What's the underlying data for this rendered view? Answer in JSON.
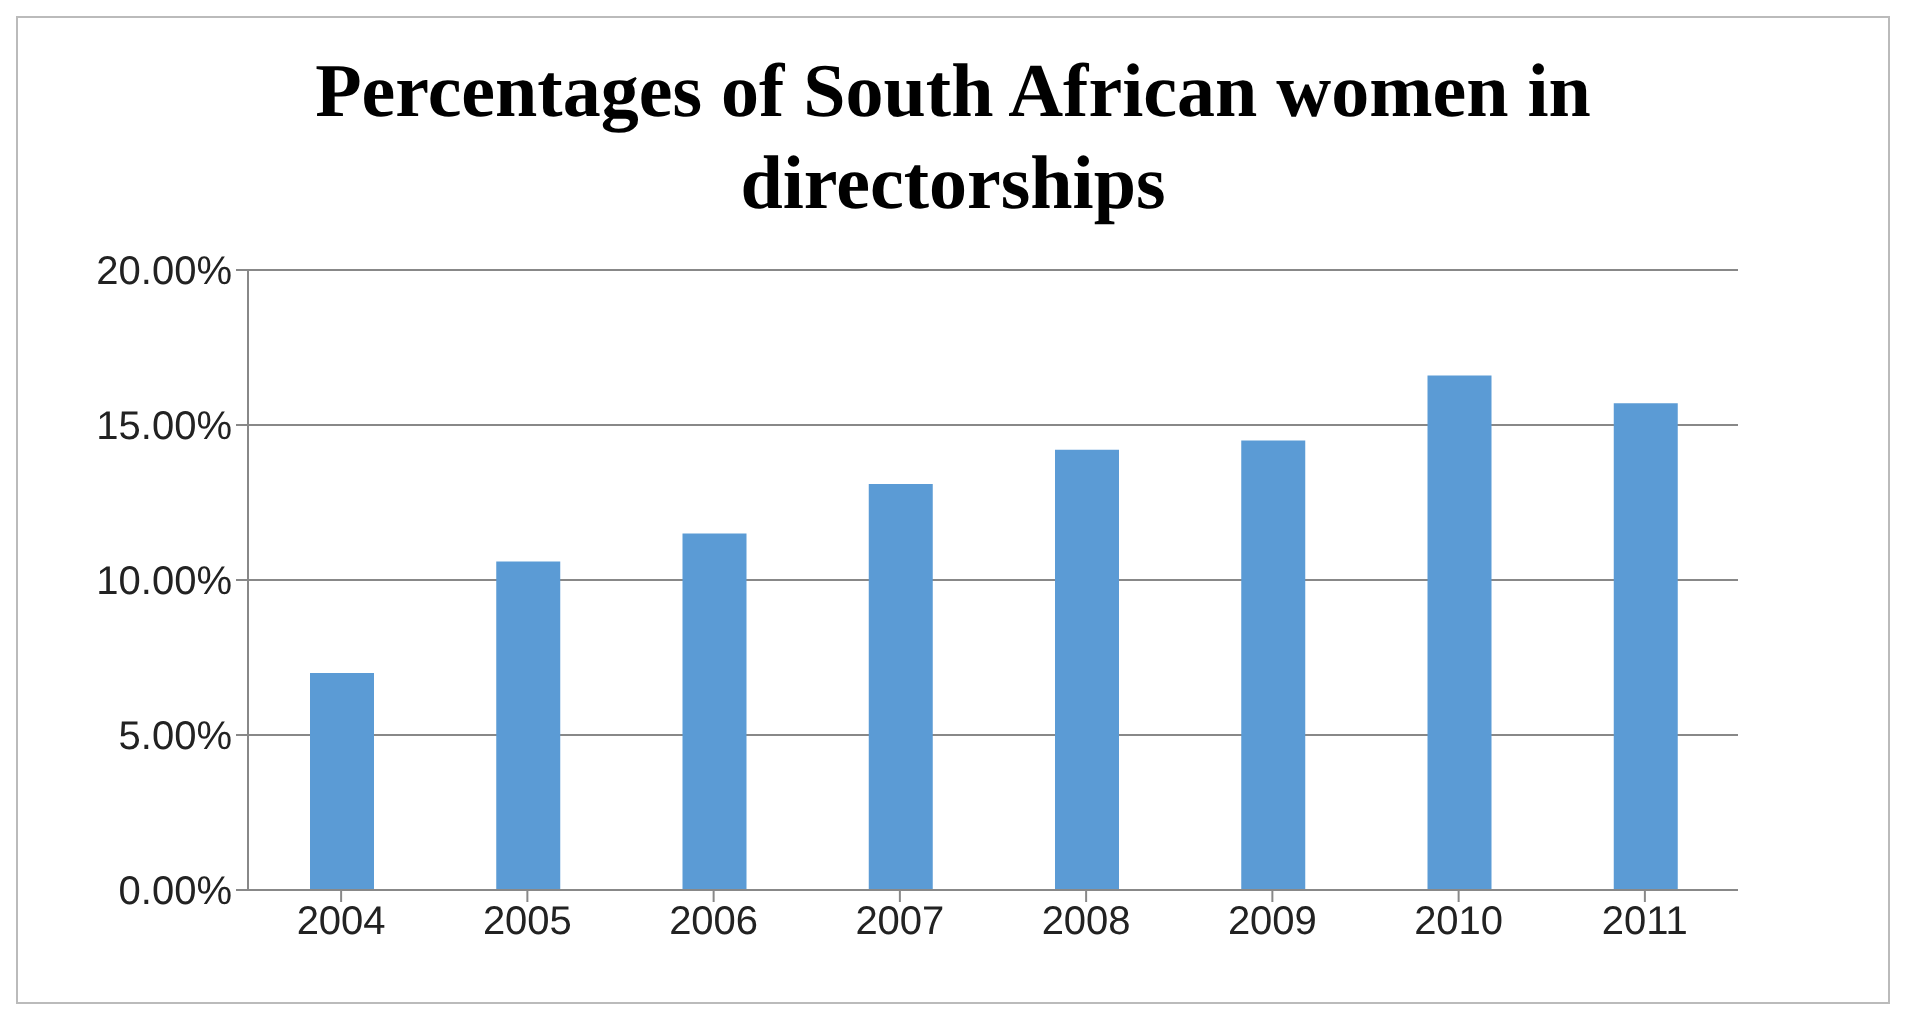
{
  "chart_data": {
    "type": "bar",
    "title": "Percentages of South African women in directorships",
    "categories": [
      "2004",
      "2005",
      "2006",
      "2007",
      "2008",
      "2009",
      "2010",
      "2011"
    ],
    "values": [
      7.0,
      10.6,
      11.5,
      13.1,
      14.2,
      14.5,
      16.6,
      15.7
    ],
    "color": "#5b9bd5",
    "ylim": [
      0,
      20
    ],
    "yticks": [
      {
        "value": 0,
        "label": "0.00%"
      },
      {
        "value": 5,
        "label": "5.00%"
      },
      {
        "value": 10,
        "label": "10.00%"
      },
      {
        "value": 15,
        "label": "15.00%"
      },
      {
        "value": 20,
        "label": "20.00%"
      }
    ],
    "grid": "y",
    "legend": false
  }
}
